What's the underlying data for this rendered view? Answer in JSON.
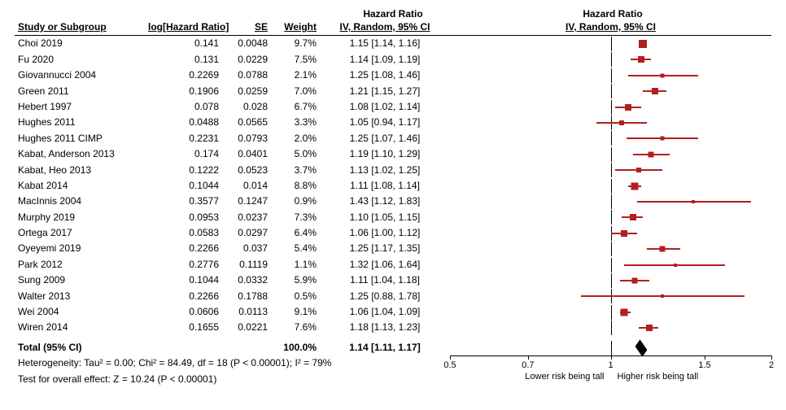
{
  "headers": {
    "study": "Study or Subgroup",
    "loghr": "log[Hazard Ratio]",
    "se": "SE",
    "weight": "Weight",
    "ci": "IV, Random, 95% CI",
    "hrTitle": "Hazard Ratio"
  },
  "axis": {
    "min_log": -0.6931,
    "max_log": 0.6931,
    "ticks": [
      {
        "val": 0.5,
        "label": "0.5"
      },
      {
        "val": 0.7,
        "label": "0.7"
      },
      {
        "val": 1.0,
        "label": "1"
      },
      {
        "val": 1.5,
        "label": "1.5"
      },
      {
        "val": 2.0,
        "label": "2"
      }
    ],
    "lowerLabel": "Lower risk being tall",
    "higherLabel": "Higher risk being tall"
  },
  "colors": {
    "effect": "#b02020",
    "ink": "#000000",
    "bg": "#ffffff"
  },
  "studies": [
    {
      "name": "Choi 2019",
      "loghr": "0.141",
      "se": "0.0048",
      "wt": "9.7%",
      "ci": "1.15 [1.14, 1.16]",
      "hr": 1.15,
      "lo": 1.14,
      "hi": 1.16,
      "sz": 10
    },
    {
      "name": "Fu 2020",
      "loghr": "0.131",
      "se": "0.0229",
      "wt": "7.5%",
      "ci": "1.14 [1.09, 1.19]",
      "hr": 1.14,
      "lo": 1.09,
      "hi": 1.19,
      "sz": 8
    },
    {
      "name": "Giovannucci 2004",
      "loghr": "0.2269",
      "se": "0.0788",
      "wt": "2.1%",
      "ci": "1.25 [1.08, 1.46]",
      "hr": 1.25,
      "lo": 1.08,
      "hi": 1.46,
      "sz": 5
    },
    {
      "name": "Green 2011",
      "loghr": "0.1906",
      "se": "0.0259",
      "wt": "7.0%",
      "ci": "1.21 [1.15, 1.27]",
      "hr": 1.21,
      "lo": 1.15,
      "hi": 1.27,
      "sz": 8
    },
    {
      "name": "Hebert 1997",
      "loghr": "0.078",
      "se": "0.028",
      "wt": "6.7%",
      "ci": "1.08 [1.02, 1.14]",
      "hr": 1.08,
      "lo": 1.02,
      "hi": 1.14,
      "sz": 8
    },
    {
      "name": "Hughes 2011",
      "loghr": "0.0488",
      "se": "0.0565",
      "wt": "3.3%",
      "ci": "1.05 [0.94, 1.17]",
      "hr": 1.05,
      "lo": 0.94,
      "hi": 1.17,
      "sz": 6
    },
    {
      "name": "Hughes 2011 CIMP",
      "loghr": "0.2231",
      "se": "0.0793",
      "wt": "2.0%",
      "ci": "1.25 [1.07, 1.46]",
      "hr": 1.25,
      "lo": 1.07,
      "hi": 1.46,
      "sz": 5
    },
    {
      "name": "Kabat, Anderson 2013",
      "loghr": "0.174",
      "se": "0.0401",
      "wt": "5.0%",
      "ci": "1.19 [1.10, 1.29]",
      "hr": 1.19,
      "lo": 1.1,
      "hi": 1.29,
      "sz": 7
    },
    {
      "name": "Kabat, Heo 2013",
      "loghr": "0.1222",
      "se": "0.0523",
      "wt": "3.7%",
      "ci": "1.13 [1.02, 1.25]",
      "hr": 1.13,
      "lo": 1.02,
      "hi": 1.25,
      "sz": 6
    },
    {
      "name": "Kabat 2014",
      "loghr": "0.1044",
      "se": "0.014",
      "wt": "8.8%",
      "ci": "1.11 [1.08, 1.14]",
      "hr": 1.11,
      "lo": 1.08,
      "hi": 1.14,
      "sz": 9
    },
    {
      "name": "MacInnis 2004",
      "loghr": "0.3577",
      "se": "0.1247",
      "wt": "0.9%",
      "ci": "1.43 [1.12, 1.83]",
      "hr": 1.43,
      "lo": 1.12,
      "hi": 1.83,
      "sz": 4
    },
    {
      "name": "Murphy 2019",
      "loghr": "0.0953",
      "se": "0.0237",
      "wt": "7.3%",
      "ci": "1.10 [1.05, 1.15]",
      "hr": 1.1,
      "lo": 1.05,
      "hi": 1.15,
      "sz": 8
    },
    {
      "name": "Ortega 2017",
      "loghr": "0.0583",
      "se": "0.0297",
      "wt": "6.4%",
      "ci": "1.06 [1.00, 1.12]",
      "hr": 1.06,
      "lo": 1.0,
      "hi": 1.12,
      "sz": 8
    },
    {
      "name": "Oyeyemi 2019",
      "loghr": "0.2266",
      "se": "0.037",
      "wt": "5.4%",
      "ci": "1.25 [1.17, 1.35]",
      "hr": 1.25,
      "lo": 1.17,
      "hi": 1.35,
      "sz": 7
    },
    {
      "name": "Park 2012",
      "loghr": "0.2776",
      "se": "0.1119",
      "wt": "1.1%",
      "ci": "1.32 [1.06, 1.64]",
      "hr": 1.32,
      "lo": 1.06,
      "hi": 1.64,
      "sz": 4
    },
    {
      "name": "Sung 2009",
      "loghr": "0.1044",
      "se": "0.0332",
      "wt": "5.9%",
      "ci": "1.11 [1.04, 1.18]",
      "hr": 1.11,
      "lo": 1.04,
      "hi": 1.18,
      "sz": 7
    },
    {
      "name": "Walter 2013",
      "loghr": "0.2266",
      "se": "0.1788",
      "wt": "0.5%",
      "ci": "1.25 [0.88, 1.78]",
      "hr": 1.25,
      "lo": 0.88,
      "hi": 1.78,
      "sz": 4
    },
    {
      "name": "Wei 2004",
      "loghr": "0.0606",
      "se": "0.0113",
      "wt": "9.1%",
      "ci": "1.06 [1.04, 1.09]",
      "hr": 1.06,
      "lo": 1.04,
      "hi": 1.09,
      "sz": 9
    },
    {
      "name": "Wiren 2014",
      "loghr": "0.1655",
      "se": "0.0221",
      "wt": "7.6%",
      "ci": "1.18 [1.13, 1.23]",
      "hr": 1.18,
      "lo": 1.13,
      "hi": 1.23,
      "sz": 8
    }
  ],
  "total": {
    "label": "Total (95% CI)",
    "wt": "100.0%",
    "ci": "1.14 [1.11, 1.17]",
    "hr": 1.14,
    "lo": 1.11,
    "hi": 1.17
  },
  "footer": {
    "het": "Heterogeneity: Tau² = 0.00; Chi² = 84.49, df = 18 (P < 0.00001); I² = 79%",
    "eff": "Test for overall effect: Z = 10.24 (P < 0.00001)"
  }
}
